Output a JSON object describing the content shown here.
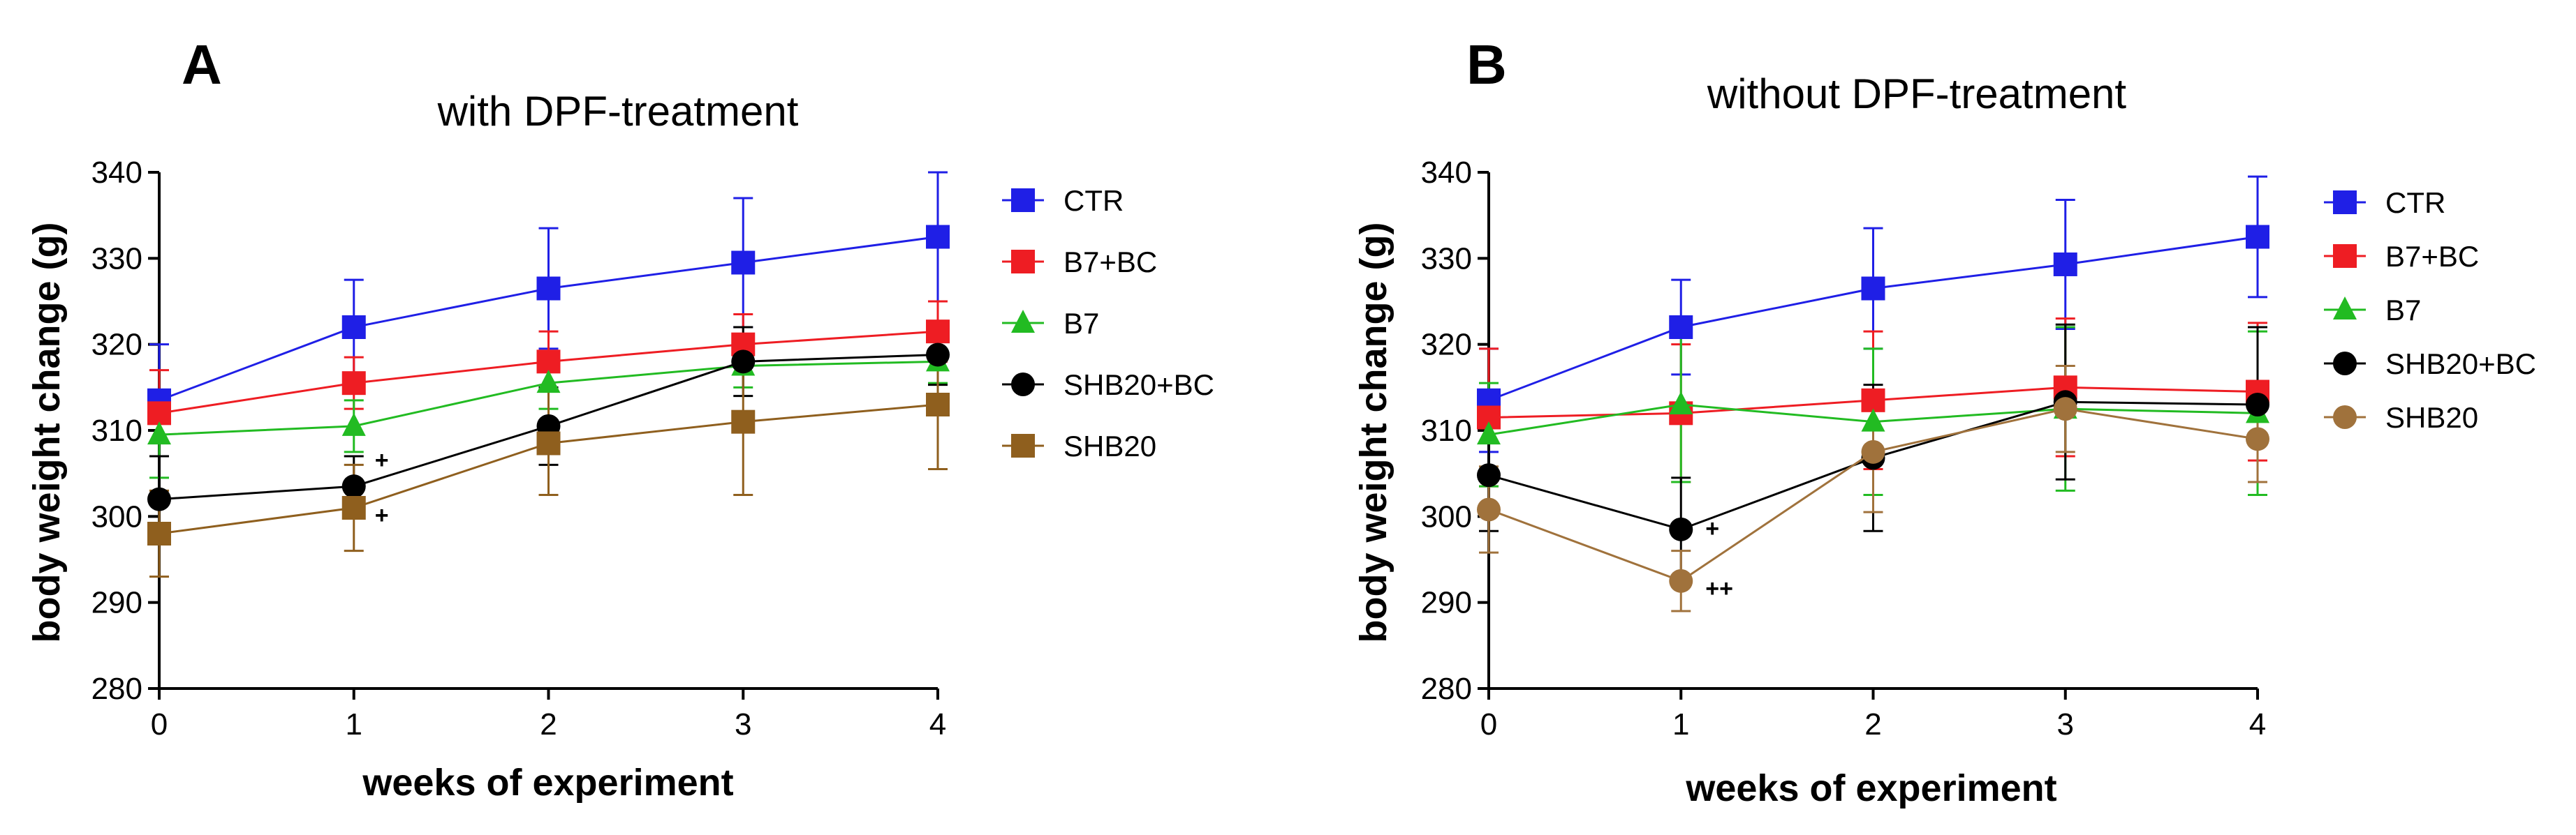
{
  "chart_data": [
    {
      "type": "line",
      "panel_letter": "A",
      "title": "with DPF-treatment",
      "xlabel": "weeks of experiment",
      "ylabel": "body weight change (g)",
      "x": [
        0,
        1,
        2,
        3,
        4
      ],
      "xlim": [
        0,
        4
      ],
      "ylim": [
        280,
        340
      ],
      "yticks": [
        280,
        290,
        300,
        310,
        320,
        330,
        340
      ],
      "xticks": [
        0,
        1,
        2,
        3,
        4
      ],
      "legend_position": "right",
      "series": [
        {
          "name": "CTR",
          "color": "#1f1fe6",
          "marker": "square",
          "values": [
            313.5,
            322,
            326.5,
            329.5,
            332.5
          ],
          "errors": [
            6.5,
            5.5,
            7,
            7.5,
            7.5
          ]
        },
        {
          "name": "B7+BC",
          "color": "#ee1d23",
          "marker": "square",
          "values": [
            312,
            315.5,
            318,
            320,
            321.5
          ],
          "errors": [
            5,
            3,
            3.5,
            3.5,
            3.5
          ]
        },
        {
          "name": "B7",
          "color": "#22bb22",
          "marker": "triangle",
          "values": [
            309.5,
            310.5,
            315.5,
            317.5,
            318
          ],
          "errors": [
            5,
            3,
            3,
            2.5,
            2.5
          ]
        },
        {
          "name": "SHB20+BC",
          "color": "#000000",
          "marker": "circle",
          "values": [
            302,
            303.5,
            310.5,
            318,
            318.8
          ],
          "errors": [
            5,
            3.5,
            4.5,
            4,
            3.5
          ]
        },
        {
          "name": "SHB20",
          "color": "#8f5f1e",
          "marker": "square",
          "values": [
            298,
            301,
            308.5,
            311,
            313
          ],
          "errors": [
            5,
            5,
            6,
            8.5,
            7.5
          ]
        }
      ],
      "annotations": [
        {
          "x": 1,
          "y": 304,
          "text": "+"
        },
        {
          "x": 1,
          "y": 301,
          "text": "+"
        }
      ]
    },
    {
      "type": "line",
      "panel_letter": "B",
      "title": "without DPF-treatment",
      "xlabel": "weeks of experiment",
      "ylabel": "body weight change (g)",
      "x": [
        0,
        1,
        2,
        3,
        4
      ],
      "xlim": [
        0,
        4
      ],
      "ylim": [
        280,
        340
      ],
      "yticks": [
        280,
        290,
        300,
        310,
        320,
        330,
        340
      ],
      "xticks": [
        0,
        1,
        2,
        3,
        4
      ],
      "legend_position": "right",
      "series": [
        {
          "name": "CTR",
          "color": "#1f1fe6",
          "marker": "square",
          "values": [
            313.5,
            322,
            326.5,
            329.3,
            332.5
          ],
          "errors": [
            6,
            5.5,
            7,
            7.5,
            7
          ]
        },
        {
          "name": "B7+BC",
          "color": "#ee1d23",
          "marker": "square",
          "values": [
            311.5,
            312,
            313.5,
            315,
            314.5
          ],
          "errors": [
            8,
            8,
            8,
            8,
            8
          ]
        },
        {
          "name": "B7",
          "color": "#22bb22",
          "marker": "triangle",
          "values": [
            309.5,
            313,
            311,
            312.5,
            312
          ],
          "errors": [
            6,
            9,
            8.5,
            9.5,
            9.5
          ]
        },
        {
          "name": "SHB20+BC",
          "color": "#000000",
          "marker": "circle",
          "values": [
            304.8,
            298.5,
            306.8,
            313.3,
            313
          ],
          "errors": [
            6.5,
            6,
            8.5,
            9,
            9
          ]
        },
        {
          "name": "SHB20",
          "color": "#a0723c",
          "marker": "circle",
          "values": [
            300.8,
            292.5,
            307.5,
            312.5,
            309
          ],
          "errors": [
            5,
            3.5,
            7,
            5,
            5
          ]
        }
      ],
      "annotations": [
        {
          "x": 1,
          "y": 298.5,
          "text": "+"
        },
        {
          "x": 1,
          "y": 292.5,
          "text": "++"
        }
      ]
    }
  ]
}
